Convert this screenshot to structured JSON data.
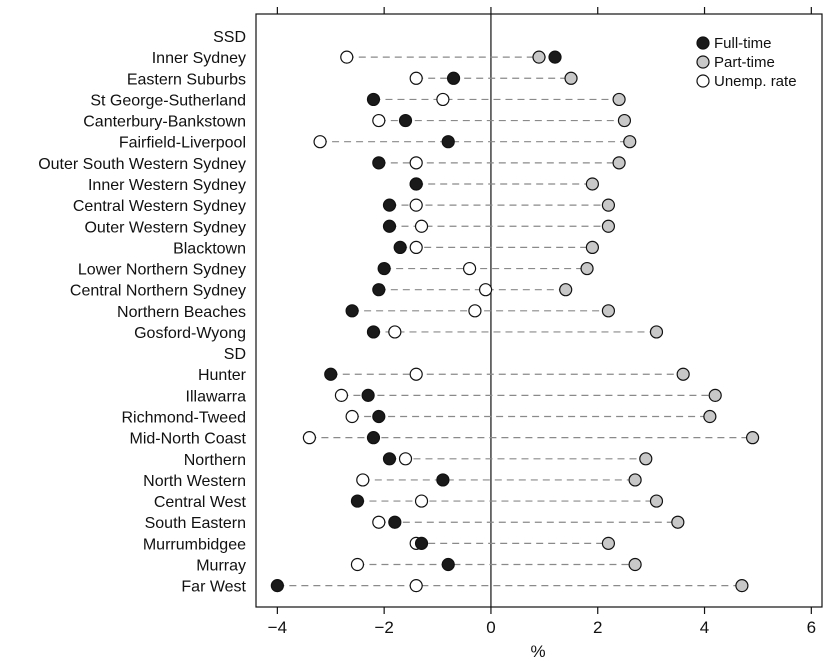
{
  "chart_data": {
    "type": "scatter",
    "xlabel": "%",
    "xlim": [
      -4.4,
      6.2
    ],
    "xticks": [
      -4,
      -2,
      0,
      2,
      4,
      6
    ],
    "xtick_labels": [
      "−4",
      "−2",
      "0",
      "2",
      "4",
      "6"
    ],
    "grid": false,
    "legend_position": "top-right",
    "categories": [
      "SSD",
      "Inner Sydney",
      "Eastern Suburbs",
      "St George-Sutherland",
      "Canterbury-Bankstown",
      "Fairfield-Liverpool",
      "Outer South Western Sydney",
      "Inner Western Sydney",
      "Central Western Sydney",
      "Outer Western Sydney",
      "Blacktown",
      "Lower Northern Sydney",
      "Central Northern Sydney",
      "Northern Beaches",
      "Gosford-Wyong",
      "SD",
      "Hunter",
      "Illawarra",
      "Richmond-Tweed",
      "Mid-North Coast",
      "Northern",
      "North Western",
      "Central West",
      "South Eastern",
      "Murrumbidgee",
      "Murray",
      "Far West"
    ],
    "series": [
      {
        "name": "Full-time",
        "color": "#1a1a1a",
        "values": [
          null,
          1.2,
          -0.7,
          -2.2,
          -1.6,
          -0.8,
          -2.1,
          -1.4,
          -1.9,
          -1.9,
          -1.7,
          -2.0,
          -2.1,
          -2.6,
          -2.2,
          null,
          -3.0,
          -2.3,
          -2.1,
          -2.2,
          -1.9,
          -0.9,
          -2.5,
          -1.8,
          -1.3,
          -0.8,
          -4.0
        ]
      },
      {
        "name": "Part-time",
        "color": "#c8c8c8",
        "values": [
          null,
          0.9,
          1.5,
          2.4,
          2.5,
          2.6,
          2.4,
          1.9,
          2.2,
          2.2,
          1.9,
          1.8,
          1.4,
          2.2,
          3.1,
          null,
          3.6,
          4.2,
          4.1,
          4.9,
          2.9,
          2.7,
          3.1,
          3.5,
          2.2,
          2.7,
          4.7
        ]
      },
      {
        "name": "Unemp. rate",
        "color": "#ffffff",
        "values": [
          null,
          -2.7,
          -1.4,
          -0.9,
          -2.1,
          -3.2,
          -1.4,
          -1.4,
          -1.4,
          -1.3,
          -1.4,
          -0.4,
          -0.1,
          -0.3,
          -1.8,
          null,
          -1.4,
          -2.8,
          -2.6,
          -3.4,
          -1.6,
          -2.4,
          -1.3,
          -2.1,
          -1.4,
          -2.5,
          -1.4
        ]
      }
    ]
  }
}
